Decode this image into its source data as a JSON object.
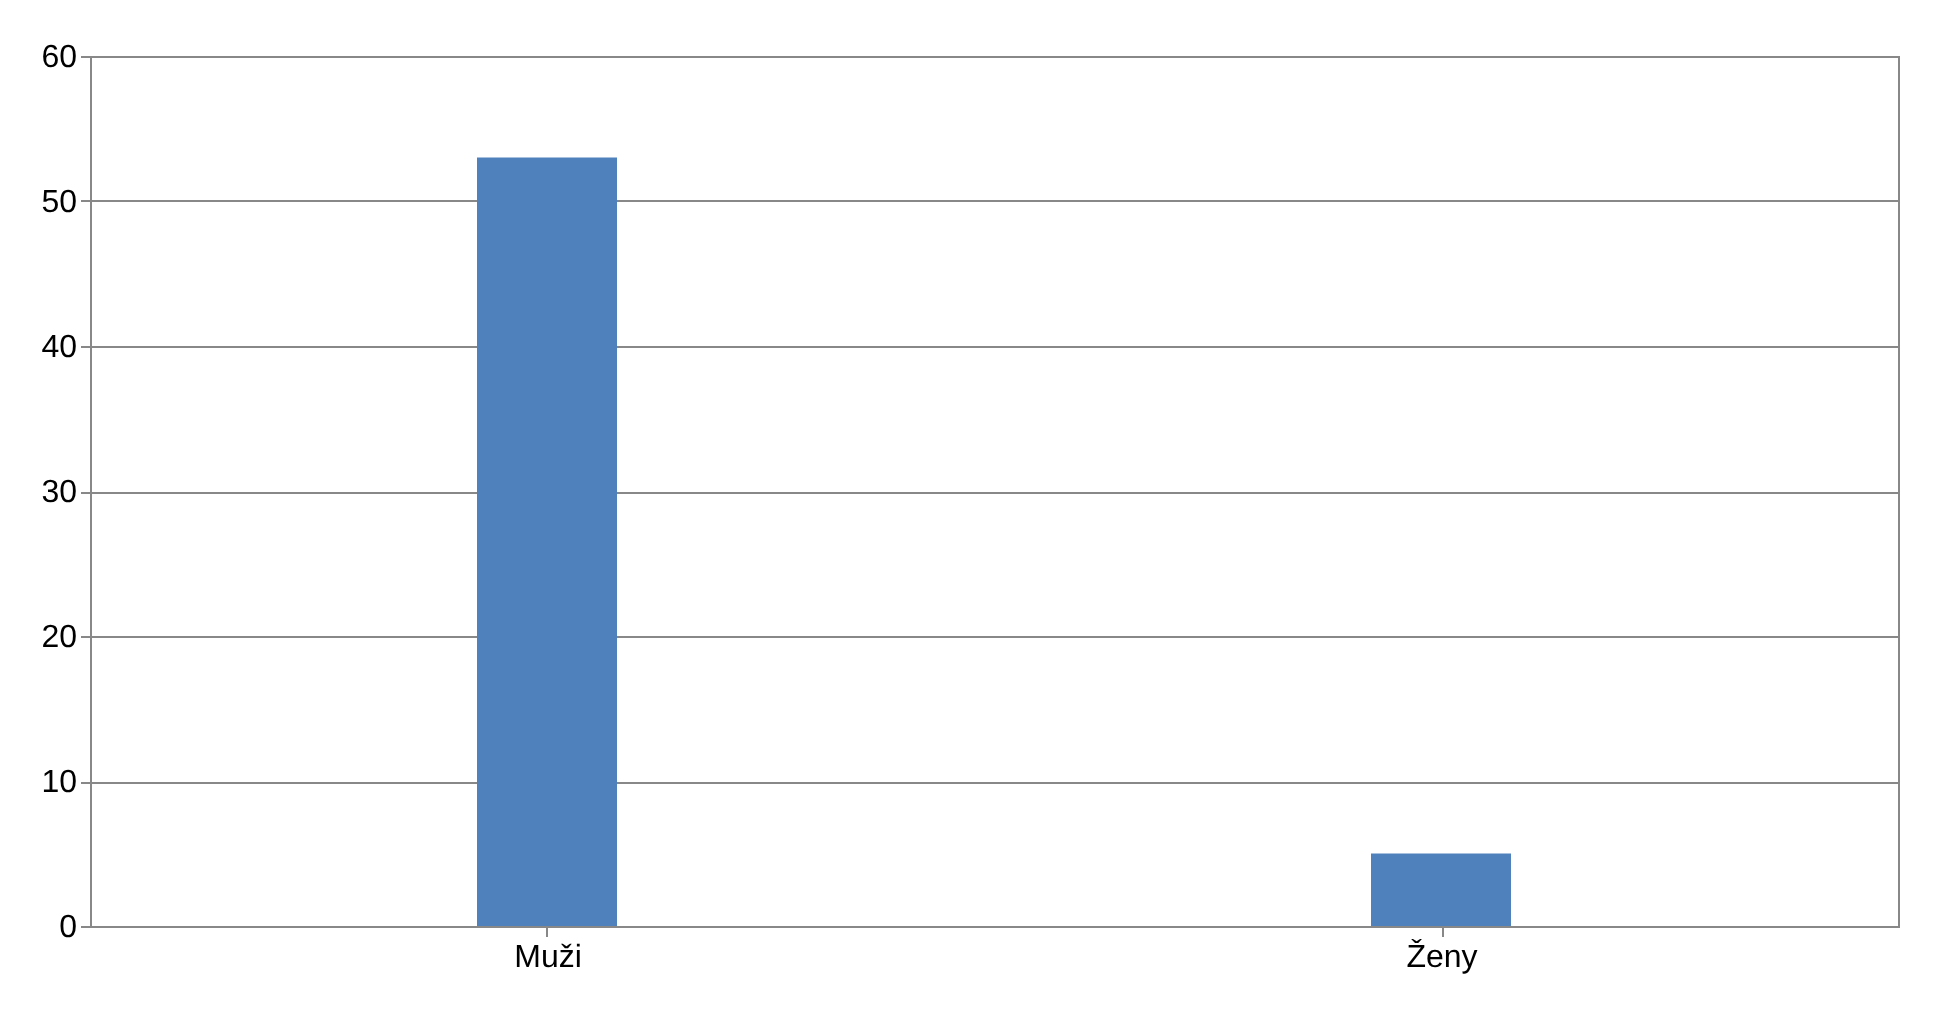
{
  "chart_data": {
    "type": "bar",
    "categories": [
      "Muži",
      "Ženy"
    ],
    "values": [
      53,
      5
    ],
    "color": "#4f81bd",
    "ylim": [
      0,
      60
    ],
    "yticks": [
      0,
      10,
      20,
      30,
      40,
      50,
      60
    ],
    "grid": "y"
  }
}
